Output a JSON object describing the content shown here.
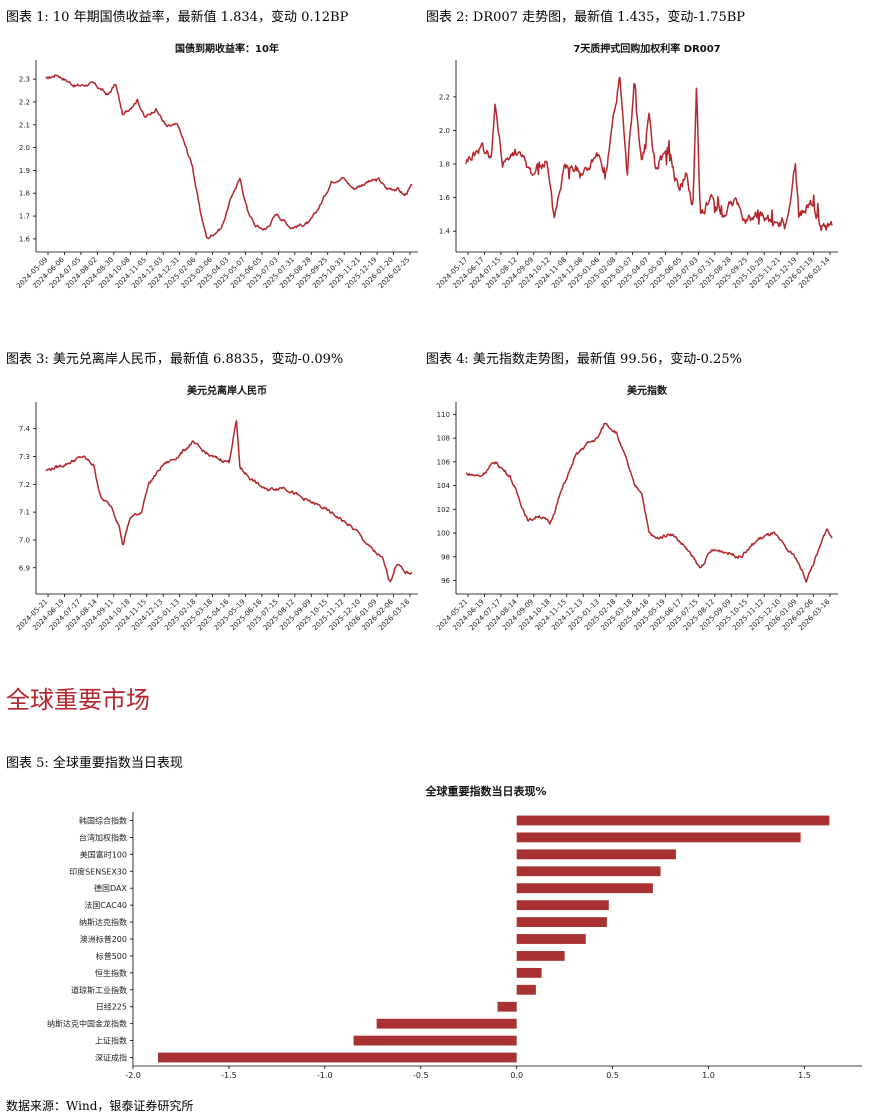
{
  "figures": [
    {
      "caption": "图表 1: 10 年期国债收益率，最新值 1.834，变动 0.12BP",
      "chart_data": {
        "type": "line",
        "title": "国债到期收益率：10年",
        "color": "#b4262c",
        "yticks": [
          "1.6",
          "1.7",
          "1.8",
          "1.9",
          "2.0",
          "2.1",
          "2.2",
          "2.3"
        ],
        "xticks": [
          "2024-05-09",
          "2024-06-06",
          "2024-07-05",
          "2024-08-02",
          "2024-08-30",
          "2024-10-08",
          "2024-11-05",
          "2024-12-03",
          "2024-12-31",
          "2025-02-06",
          "2025-03-06",
          "2025-04-03",
          "2025-05-07",
          "2025-06-05",
          "2025-07-03",
          "2025-07-31",
          "2025-08-28",
          "2025-09-25",
          "2025-10-31",
          "2025-11-21",
          "2025-12-19",
          "2026-01-20",
          "2026-02-25"
        ],
        "ylim": [
          1.56,
          2.34
        ],
        "anchors": [
          [
            0,
            2.3
          ],
          [
            0.03,
            2.32
          ],
          [
            0.08,
            2.27
          ],
          [
            0.13,
            2.28
          ],
          [
            0.17,
            2.23
          ],
          [
            0.19,
            2.28
          ],
          [
            0.21,
            2.14
          ],
          [
            0.25,
            2.21
          ],
          [
            0.27,
            2.13
          ],
          [
            0.3,
            2.17
          ],
          [
            0.33,
            2.09
          ],
          [
            0.36,
            2.1
          ],
          [
            0.4,
            1.92
          ],
          [
            0.42,
            1.73
          ],
          [
            0.44,
            1.6
          ],
          [
            0.48,
            1.65
          ],
          [
            0.51,
            1.8
          ],
          [
            0.53,
            1.86
          ],
          [
            0.55,
            1.73
          ],
          [
            0.57,
            1.66
          ],
          [
            0.6,
            1.64
          ],
          [
            0.63,
            1.71
          ],
          [
            0.67,
            1.65
          ],
          [
            0.72,
            1.67
          ],
          [
            0.75,
            1.75
          ],
          [
            0.78,
            1.85
          ],
          [
            0.81,
            1.87
          ],
          [
            0.84,
            1.82
          ],
          [
            0.88,
            1.85
          ],
          [
            0.91,
            1.86
          ],
          [
            0.93,
            1.82
          ],
          [
            0.96,
            1.82
          ],
          [
            0.98,
            1.79
          ],
          [
            1.0,
            1.834
          ]
        ]
      }
    },
    {
      "caption": "图表 2: DR007 走势图，最新值 1.435，变动-1.75BP",
      "chart_data": {
        "type": "line",
        "title": "7天质押式回购加权利率 DR007",
        "color": "#b4262c",
        "yticks": [
          "1.4",
          "1.6",
          "1.8",
          "2.0",
          "2.2"
        ],
        "xticks": [
          "2024-05-17",
          "2024-06-17",
          "2024-07-15",
          "2024-08-12",
          "2024-09-09",
          "2024-10-12",
          "2024-11-08",
          "2024-12-06",
          "2025-01-06",
          "2025-02-08",
          "2025-03-07",
          "2025-04-07",
          "2025-05-07",
          "2025-06-05",
          "2025-07-03",
          "2025-07-31",
          "2025-08-28",
          "2025-09-25",
          "2025-10-29",
          "2025-11-21",
          "2025-12-19",
          "2026-01-19",
          "2026-02-14"
        ],
        "ylim": [
          1.3,
          2.36
        ],
        "anchors": [
          [
            0,
            1.82
          ],
          [
            0.04,
            1.9
          ],
          [
            0.07,
            1.85
          ],
          [
            0.08,
            2.15
          ],
          [
            0.1,
            1.82
          ],
          [
            0.14,
            1.88
          ],
          [
            0.18,
            1.75
          ],
          [
            0.22,
            1.82
          ],
          [
            0.24,
            1.48
          ],
          [
            0.27,
            1.8
          ],
          [
            0.32,
            1.75
          ],
          [
            0.36,
            1.85
          ],
          [
            0.38,
            1.7
          ],
          [
            0.42,
            2.33
          ],
          [
            0.44,
            1.72
          ],
          [
            0.46,
            2.3
          ],
          [
            0.48,
            1.78
          ],
          [
            0.5,
            2.05
          ],
          [
            0.52,
            1.75
          ],
          [
            0.55,
            1.9
          ],
          [
            0.58,
            1.65
          ],
          [
            0.6,
            1.75
          ],
          [
            0.62,
            1.55
          ],
          [
            0.63,
            2.28
          ],
          [
            0.64,
            1.5
          ],
          [
            0.67,
            1.6
          ],
          [
            0.7,
            1.5
          ],
          [
            0.73,
            1.58
          ],
          [
            0.76,
            1.48
          ],
          [
            0.8,
            1.5
          ],
          [
            0.84,
            1.45
          ],
          [
            0.88,
            1.46
          ],
          [
            0.9,
            1.8
          ],
          [
            0.91,
            1.48
          ],
          [
            0.94,
            1.58
          ],
          [
            0.97,
            1.42
          ],
          [
            1.0,
            1.435
          ]
        ]
      }
    },
    {
      "caption": "图表 3: 美元兑离岸人民币，最新值 6.8835，变动-0.09%",
      "chart_data": {
        "type": "line",
        "title": "美元兑离岸人民币",
        "color": "#b4262c",
        "yticks": [
          "6.9",
          "7.0",
          "7.1",
          "7.2",
          "7.3",
          "7.4"
        ],
        "xticks": [
          "2024-05-21",
          "2024-06-19",
          "2024-07-17",
          "2024-08-14",
          "2024-09-11",
          "2024-10-18",
          "2024-11-15",
          "2024-12-13",
          "2025-01-13",
          "2025-02-18",
          "2025-03-18",
          "2025-04-16",
          "2025-05-19",
          "2025-06-16",
          "2025-07-15",
          "2025-08-12",
          "2025-09-09",
          "2025-10-15",
          "2025-11-12",
          "2025-12-10",
          "2026-01-09",
          "2026-02-06",
          "2026-03-16"
        ],
        "ylim": [
          6.82,
          7.46
        ],
        "anchors": [
          [
            0,
            7.25
          ],
          [
            0.05,
            7.27
          ],
          [
            0.1,
            7.3
          ],
          [
            0.13,
            7.27
          ],
          [
            0.15,
            7.15
          ],
          [
            0.18,
            7.12
          ],
          [
            0.2,
            7.05
          ],
          [
            0.21,
            6.98
          ],
          [
            0.23,
            7.08
          ],
          [
            0.26,
            7.1
          ],
          [
            0.28,
            7.2
          ],
          [
            0.32,
            7.27
          ],
          [
            0.36,
            7.3
          ],
          [
            0.4,
            7.35
          ],
          [
            0.45,
            7.3
          ],
          [
            0.5,
            7.28
          ],
          [
            0.52,
            7.43
          ],
          [
            0.53,
            7.26
          ],
          [
            0.56,
            7.22
          ],
          [
            0.6,
            7.18
          ],
          [
            0.65,
            7.19
          ],
          [
            0.7,
            7.15
          ],
          [
            0.75,
            7.12
          ],
          [
            0.8,
            7.08
          ],
          [
            0.85,
            7.03
          ],
          [
            0.88,
            6.98
          ],
          [
            0.92,
            6.93
          ],
          [
            0.94,
            6.85
          ],
          [
            0.96,
            6.92
          ],
          [
            0.98,
            6.88
          ],
          [
            1.0,
            6.8835
          ]
        ]
      }
    },
    {
      "caption": "图表 4: 美元指数走势图，最新值 99.56，变动-0.25%",
      "chart_data": {
        "type": "line",
        "title": "美元指数",
        "color": "#b4262c",
        "yticks": [
          "96",
          "98",
          "100",
          "102",
          "104",
          "106",
          "108",
          "110"
        ],
        "xticks": [
          "2024-05-21",
          "2024-06-19",
          "2024-07-17",
          "2024-08-14",
          "2024-09-09",
          "2024-10-18",
          "2024-11-15",
          "2024-12-13",
          "2025-01-13",
          "2025-02-18",
          "2025-03-18",
          "2025-04-16",
          "2025-05-19",
          "2025-06-17",
          "2025-07-15",
          "2025-08-12",
          "2025-09-09",
          "2025-10-15",
          "2025-11-12",
          "2025-12-10",
          "2026-01-09",
          "2026-02-06",
          "2026-03-16"
        ],
        "ylim": [
          95.2,
          110.2
        ],
        "anchors": [
          [
            0,
            105
          ],
          [
            0.04,
            104.8
          ],
          [
            0.08,
            106
          ],
          [
            0.12,
            104.8
          ],
          [
            0.17,
            101
          ],
          [
            0.2,
            101.5
          ],
          [
            0.23,
            100.8
          ],
          [
            0.26,
            103.5
          ],
          [
            0.3,
            106.5
          ],
          [
            0.33,
            107.5
          ],
          [
            0.36,
            108
          ],
          [
            0.38,
            109.3
          ],
          [
            0.41,
            108.5
          ],
          [
            0.44,
            106
          ],
          [
            0.46,
            104
          ],
          [
            0.48,
            103.5
          ],
          [
            0.5,
            100
          ],
          [
            0.52,
            99.5
          ],
          [
            0.56,
            100
          ],
          [
            0.6,
            98.8
          ],
          [
            0.64,
            97
          ],
          [
            0.67,
            98.5
          ],
          [
            0.7,
            98.5
          ],
          [
            0.75,
            98
          ],
          [
            0.8,
            99.5
          ],
          [
            0.84,
            100
          ],
          [
            0.88,
            98.5
          ],
          [
            0.9,
            98
          ],
          [
            0.93,
            96
          ],
          [
            0.95,
            97.5
          ],
          [
            0.97,
            99
          ],
          [
            0.985,
            100.4
          ],
          [
            1.0,
            99.56
          ]
        ]
      }
    }
  ],
  "section_title": "全球重要市场",
  "figure5": {
    "caption": "图表 5: 全球重要指数当日表现",
    "chart_data": {
      "type": "bar",
      "orientation": "horizontal",
      "title": "全球重要指数当日表现%",
      "color": "#a83232",
      "categories": [
        "韩国综合指数",
        "台湾加权指数",
        "美国富时100",
        "印度SENSEX30",
        "德国DAX",
        "法国CAC40",
        "纳斯达克指数",
        "澳洲标普200",
        "标普500",
        "恒生指数",
        "道琼斯工业指数",
        "日经225",
        "纳斯达克中国金龙指数",
        "上证指数",
        "深证成指"
      ],
      "values": [
        1.63,
        1.48,
        0.83,
        0.75,
        0.71,
        0.48,
        0.47,
        0.36,
        0.25,
        0.13,
        0.1,
        -0.1,
        -0.73,
        -0.85,
        -1.87
      ],
      "xticks": [
        "-2.0",
        "-1.5",
        "-1.0",
        "-0.5",
        "0.0",
        "0.5",
        "1.0",
        "1.5"
      ],
      "xlim": [
        -2.0,
        1.8
      ]
    }
  },
  "source": "数据来源：Wind，银泰证券研究所"
}
